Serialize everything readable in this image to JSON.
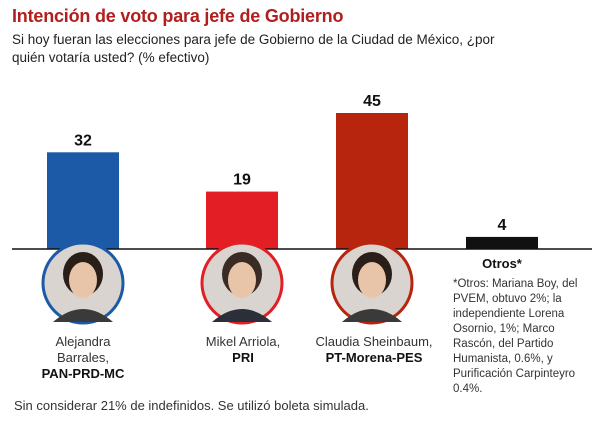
{
  "title": "Intención de voto para jefe de Gobierno",
  "subtitle": "Si hoy fueran las elecciones para jefe de Gobierno de la Ciudad de México, ¿por quién votaría usted? (% efectivo)",
  "chart_data": {
    "type": "bar",
    "categories": [
      "Alejandra Barrales, PAN-PRD-MC",
      "Mikel Arriola, PRI",
      "Claudia Sheinbaum, PT-Morena-PES",
      "Otros*"
    ],
    "values": [
      32,
      19,
      45,
      4
    ],
    "colors": [
      "#1c5aa8",
      "#e31e24",
      "#b8250f",
      "#111111"
    ],
    "ylim": [
      0,
      45
    ]
  },
  "candidates": [
    {
      "name": "Alejandra Barrales,",
      "party": "PAN-PRD-MC"
    },
    {
      "name": "Mikel Arriola,",
      "party": "PRI"
    },
    {
      "name": "Claudia Sheinbaum,",
      "party": "PT-Morena-PES"
    }
  ],
  "others_label": "Otros*",
  "note": "*Otros: Mariana Boy, del PVEM, obtuvo 2%; la independiente Lorena Osornio, 1%; Marco Rascón, del Partido Humanista, 0.6%, y Purificación Carpinteyro 0.4%.",
  "footer": "Sin considerar 21% de indefinidos. Se utilizó boleta simulada."
}
